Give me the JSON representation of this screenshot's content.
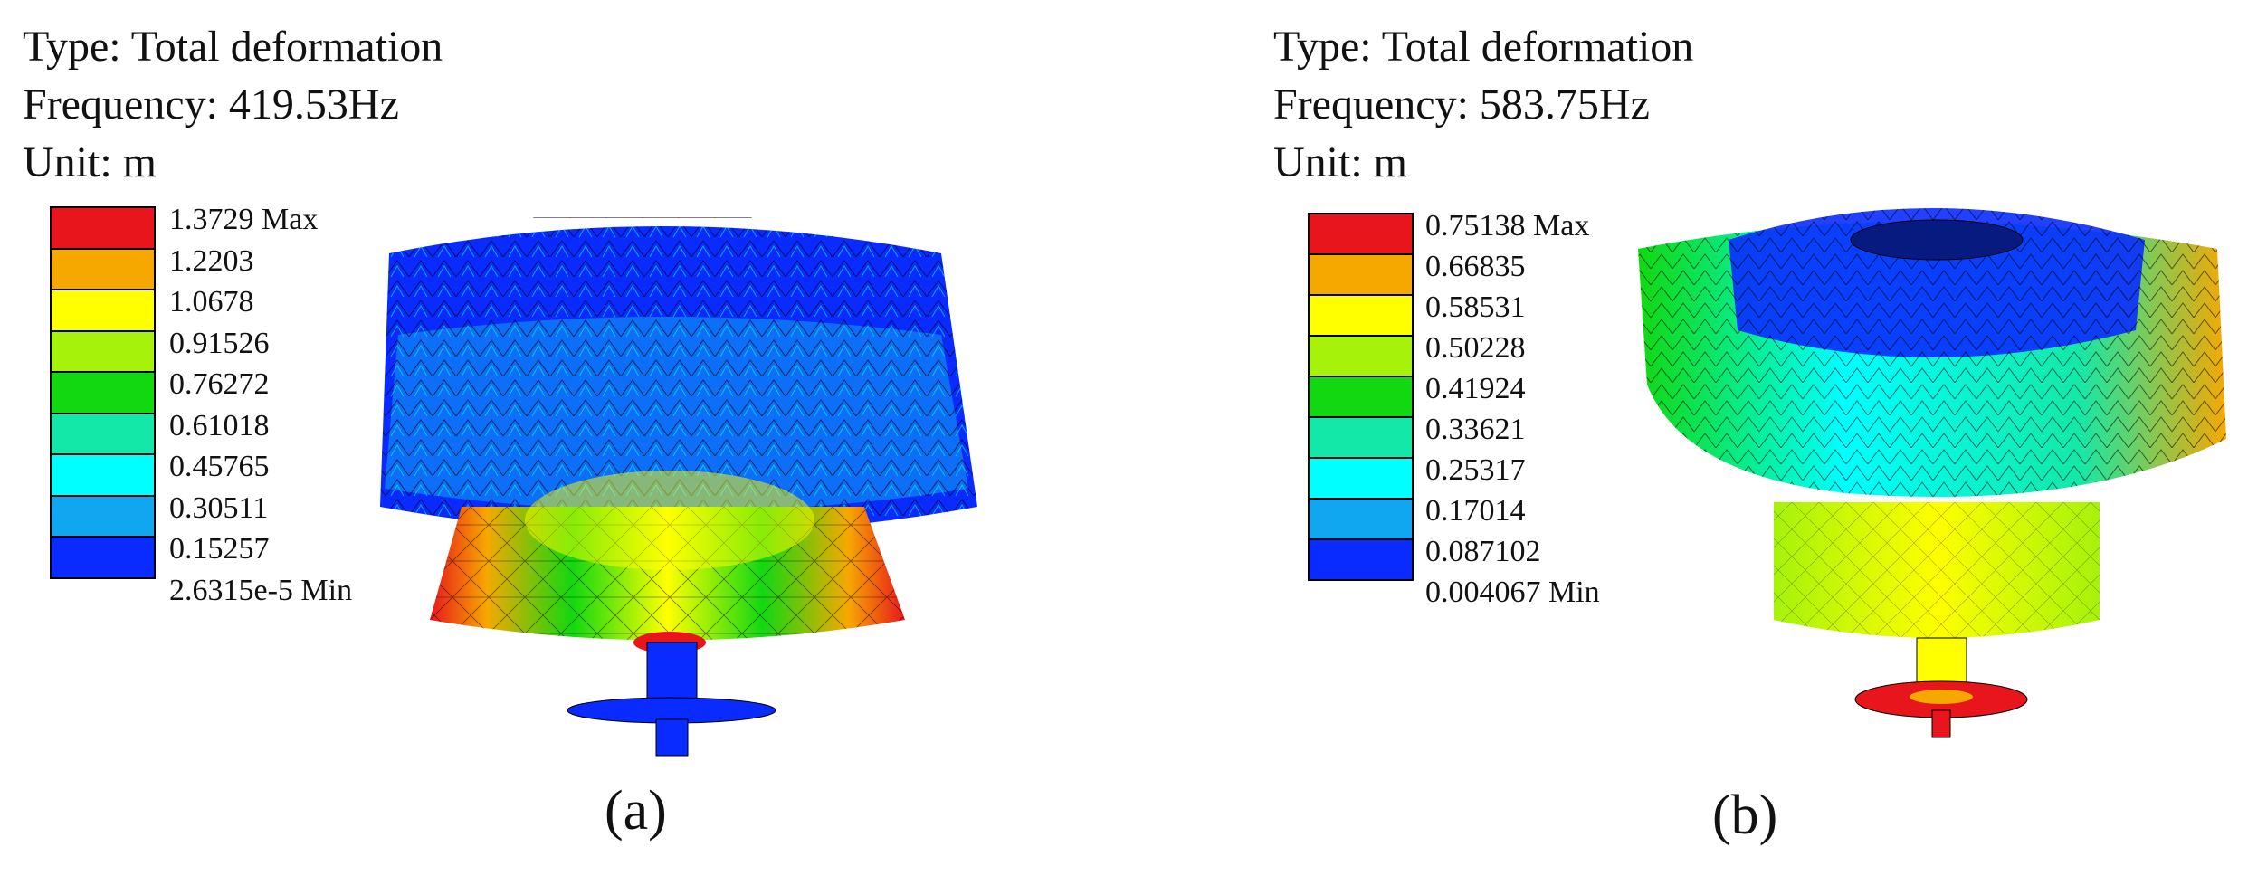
{
  "panels": [
    {
      "id": "a",
      "type_line": "Type: Total deformation",
      "frequency_line": "Frequency: 419.53Hz",
      "unit_line": "Unit: m",
      "legend_colors": [
        "#e8161c",
        "#f7a800",
        "#ffff00",
        "#a6f20a",
        "#11d810",
        "#14e8a8",
        "#00ffff",
        "#10a6f0",
        "#0a2bff"
      ],
      "legend_labels": [
        "1.3729 Max",
        "1.2203",
        "1.0678",
        "0.91526",
        "0.76272",
        "0.61018",
        "0.45765",
        "0.30511",
        "0.15257",
        "2.6315e-5 Min"
      ],
      "caption": "(a)"
    },
    {
      "id": "b",
      "type_line": "Type: Total deformation",
      "frequency_line": "Frequency: 583.75Hz",
      "unit_line": "Unit: m",
      "legend_colors": [
        "#e8161c",
        "#f7a800",
        "#ffff00",
        "#a6f20a",
        "#11d810",
        "#14e8a8",
        "#00ffff",
        "#10a6f0",
        "#0a2bff"
      ],
      "legend_labels": [
        "0.75138 Max",
        "0.66835",
        "0.58531",
        "0.50228",
        "0.41924",
        "0.33621",
        "0.25317",
        "0.17014",
        "0.087102",
        "0.004067 Min"
      ],
      "caption": "(b)"
    }
  ]
}
